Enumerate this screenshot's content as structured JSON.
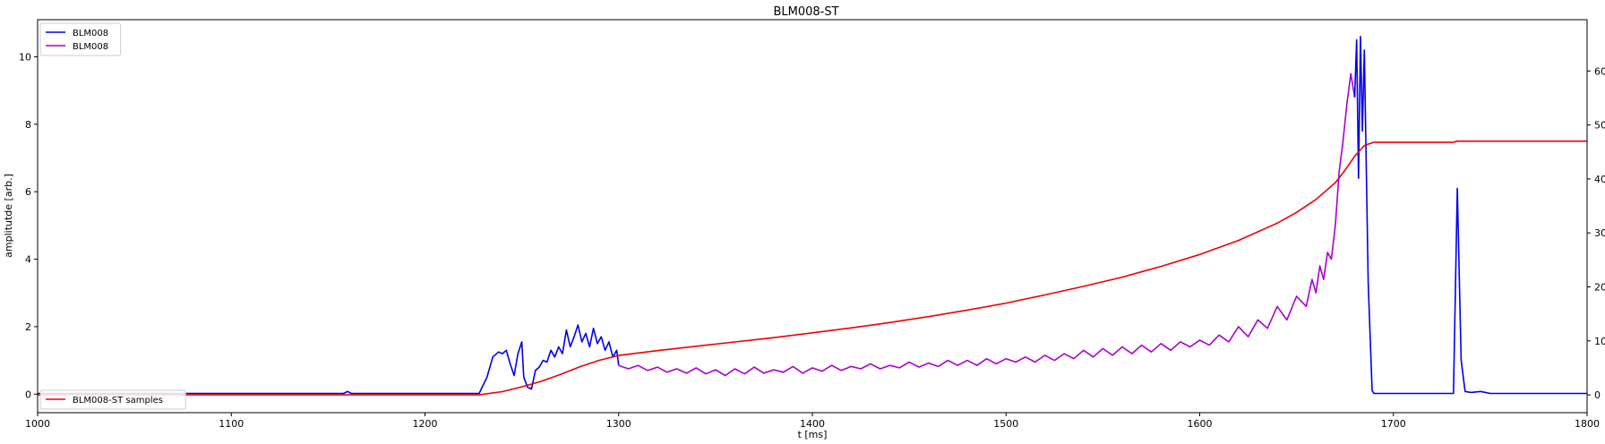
{
  "chart_data": {
    "type": "line",
    "title": "BLM008-ST",
    "xlabel": "t [ms]",
    "ylabel": "amplitutde [arb.]",
    "xlim": [
      1000,
      1800
    ],
    "ylim": [
      -0.55,
      11.1
    ],
    "y2lim": [
      -33,
      695
    ],
    "xticks": [
      1000,
      1100,
      1200,
      1300,
      1400,
      1500,
      1600,
      1700,
      1800
    ],
    "yticks": [
      0,
      2,
      4,
      6,
      8,
      10
    ],
    "y2ticks": [
      0,
      100,
      200,
      300,
      400,
      500,
      600
    ],
    "grid": false,
    "legend_left_position": "upper-left",
    "legend_right_position": "lower-left",
    "series": [
      {
        "name": "BLM008",
        "axis": "left",
        "color": "#0000ee",
        "points": [
          [
            1000,
            0.02
          ],
          [
            1020,
            0.02
          ],
          [
            1040,
            0.02
          ],
          [
            1060,
            0.02
          ],
          [
            1080,
            0.02
          ],
          [
            1100,
            0.02
          ],
          [
            1120,
            0.02
          ],
          [
            1140,
            0.02
          ],
          [
            1158,
            0.02
          ],
          [
            1160,
            0.08
          ],
          [
            1162,
            0.02
          ],
          [
            1180,
            0.02
          ],
          [
            1200,
            0.02
          ],
          [
            1220,
            0.02
          ],
          [
            1228,
            0.02
          ],
          [
            1232,
            0.5
          ],
          [
            1235,
            1.1
          ],
          [
            1238,
            1.25
          ],
          [
            1240,
            1.2
          ],
          [
            1242,
            1.3
          ],
          [
            1244,
            0.9
          ],
          [
            1246,
            0.55
          ],
          [
            1248,
            1.2
          ],
          [
            1250,
            1.55
          ],
          [
            1251,
            0.5
          ],
          [
            1253,
            0.2
          ],
          [
            1255,
            0.15
          ],
          [
            1257,
            0.7
          ],
          [
            1259,
            0.8
          ],
          [
            1261,
            1.0
          ],
          [
            1263,
            0.95
          ],
          [
            1265,
            1.3
          ],
          [
            1267,
            1.1
          ],
          [
            1269,
            1.4
          ],
          [
            1271,
            1.2
          ],
          [
            1273,
            1.9
          ],
          [
            1275,
            1.4
          ],
          [
            1277,
            1.7
          ],
          [
            1279,
            2.05
          ],
          [
            1281,
            1.55
          ],
          [
            1283,
            1.8
          ],
          [
            1285,
            1.4
          ],
          [
            1287,
            1.95
          ],
          [
            1289,
            1.5
          ],
          [
            1291,
            1.7
          ],
          [
            1293,
            1.3
          ],
          [
            1295,
            1.55
          ],
          [
            1297,
            1.1
          ],
          [
            1299,
            1.3
          ],
          [
            1300,
            0.85
          ]
        ]
      },
      {
        "name": "BLM008",
        "axis": "left",
        "color": "#aa00cc",
        "points": [
          [
            1300,
            0.85
          ],
          [
            1305,
            0.75
          ],
          [
            1310,
            0.85
          ],
          [
            1315,
            0.7
          ],
          [
            1320,
            0.8
          ],
          [
            1325,
            0.65
          ],
          [
            1330,
            0.75
          ],
          [
            1335,
            0.62
          ],
          [
            1340,
            0.78
          ],
          [
            1345,
            0.6
          ],
          [
            1350,
            0.72
          ],
          [
            1355,
            0.55
          ],
          [
            1360,
            0.75
          ],
          [
            1365,
            0.6
          ],
          [
            1370,
            0.8
          ],
          [
            1375,
            0.62
          ],
          [
            1380,
            0.72
          ],
          [
            1385,
            0.65
          ],
          [
            1390,
            0.82
          ],
          [
            1395,
            0.62
          ],
          [
            1400,
            0.78
          ],
          [
            1405,
            0.68
          ],
          [
            1410,
            0.85
          ],
          [
            1415,
            0.7
          ],
          [
            1420,
            0.82
          ],
          [
            1425,
            0.75
          ],
          [
            1430,
            0.9
          ],
          [
            1435,
            0.75
          ],
          [
            1440,
            0.85
          ],
          [
            1445,
            0.78
          ],
          [
            1450,
            0.95
          ],
          [
            1455,
            0.8
          ],
          [
            1460,
            0.92
          ],
          [
            1465,
            0.82
          ],
          [
            1470,
            1.0
          ],
          [
            1475,
            0.85
          ],
          [
            1480,
            1.0
          ],
          [
            1485,
            0.85
          ],
          [
            1490,
            1.05
          ],
          [
            1495,
            0.9
          ],
          [
            1500,
            1.05
          ],
          [
            1505,
            0.95
          ],
          [
            1510,
            1.1
          ],
          [
            1515,
            0.95
          ],
          [
            1520,
            1.15
          ],
          [
            1525,
            1.0
          ],
          [
            1530,
            1.2
          ],
          [
            1535,
            1.05
          ],
          [
            1540,
            1.3
          ],
          [
            1545,
            1.1
          ],
          [
            1550,
            1.35
          ],
          [
            1555,
            1.15
          ],
          [
            1560,
            1.4
          ],
          [
            1565,
            1.2
          ],
          [
            1570,
            1.45
          ],
          [
            1575,
            1.25
          ],
          [
            1580,
            1.5
          ],
          [
            1585,
            1.3
          ],
          [
            1590,
            1.55
          ],
          [
            1595,
            1.4
          ],
          [
            1600,
            1.6
          ],
          [
            1605,
            1.45
          ],
          [
            1610,
            1.75
          ],
          [
            1615,
            1.55
          ],
          [
            1620,
            2.0
          ],
          [
            1625,
            1.7
          ],
          [
            1630,
            2.2
          ],
          [
            1635,
            1.95
          ],
          [
            1640,
            2.6
          ],
          [
            1645,
            2.2
          ],
          [
            1650,
            2.9
          ],
          [
            1655,
            2.6
          ],
          [
            1658,
            3.4
          ],
          [
            1660,
            3.0
          ],
          [
            1662,
            3.8
          ],
          [
            1664,
            3.4
          ],
          [
            1666,
            4.2
          ],
          [
            1668,
            4.0
          ],
          [
            1670,
            5.0
          ],
          [
            1672,
            6.6
          ],
          [
            1674,
            7.5
          ],
          [
            1676,
            8.6
          ],
          [
            1678,
            9.5
          ],
          [
            1680,
            8.8
          ]
        ]
      },
      {
        "name": "BLM008",
        "axis": "left",
        "color": "#0000ee",
        "points": [
          [
            1680,
            8.8
          ],
          [
            1681,
            10.5
          ],
          [
            1682,
            6.4
          ],
          [
            1683,
            10.6
          ],
          [
            1684,
            7.8
          ],
          [
            1685,
            10.2
          ],
          [
            1687,
            3.3
          ],
          [
            1689,
            0.1
          ],
          [
            1690,
            0.02
          ],
          [
            1700,
            0.02
          ],
          [
            1710,
            0.02
          ],
          [
            1720,
            0.02
          ],
          [
            1731,
            0.02
          ],
          [
            1733,
            6.1
          ],
          [
            1735,
            1.0
          ],
          [
            1737,
            0.08
          ],
          [
            1740,
            0.05
          ],
          [
            1745,
            0.08
          ],
          [
            1750,
            0.02
          ],
          [
            1760,
            0.02
          ],
          [
            1770,
            0.02
          ],
          [
            1780,
            0.02
          ],
          [
            1790,
            0.02
          ],
          [
            1800,
            0.02
          ]
        ]
      },
      {
        "name": "BLM008-ST samples",
        "axis": "right",
        "color": "#ee0000",
        "points": [
          [
            1000,
            0
          ],
          [
            1100,
            0
          ],
          [
            1200,
            0
          ],
          [
            1228,
            0
          ],
          [
            1240,
            6
          ],
          [
            1250,
            15
          ],
          [
            1260,
            25
          ],
          [
            1270,
            38
          ],
          [
            1280,
            52
          ],
          [
            1290,
            64
          ],
          [
            1300,
            73
          ],
          [
            1320,
            82
          ],
          [
            1340,
            90
          ],
          [
            1360,
            98
          ],
          [
            1380,
            106
          ],
          [
            1400,
            115
          ],
          [
            1420,
            124
          ],
          [
            1440,
            134
          ],
          [
            1460,
            145
          ],
          [
            1480,
            157
          ],
          [
            1500,
            170
          ],
          [
            1520,
            185
          ],
          [
            1540,
            201
          ],
          [
            1560,
            218
          ],
          [
            1580,
            238
          ],
          [
            1600,
            260
          ],
          [
            1620,
            286
          ],
          [
            1640,
            318
          ],
          [
            1650,
            338
          ],
          [
            1660,
            362
          ],
          [
            1670,
            393
          ],
          [
            1675,
            416
          ],
          [
            1680,
            442
          ],
          [
            1685,
            462
          ],
          [
            1690,
            468
          ],
          [
            1700,
            468
          ],
          [
            1720,
            468
          ],
          [
            1731,
            468
          ],
          [
            1733,
            470
          ],
          [
            1740,
            470
          ],
          [
            1760,
            470
          ],
          [
            1780,
            470
          ],
          [
            1800,
            470
          ]
        ]
      }
    ]
  }
}
